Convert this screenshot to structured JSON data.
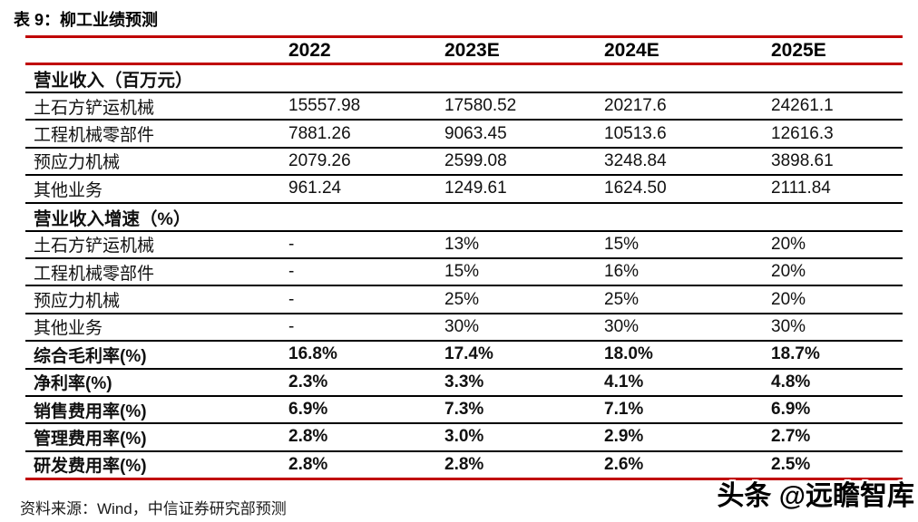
{
  "title": "表 9：柳工业绩预测",
  "source_note": "资料来源：Wind，中信证券研究部预测",
  "watermark": "头条 @远瞻智库",
  "colors": {
    "accent_red": "#C00000",
    "separator_black": "#000000",
    "text": "#111111",
    "background": "#FFFFFF"
  },
  "table": {
    "column_headers": [
      "",
      "2022",
      "2023E",
      "2024E",
      "2025E"
    ],
    "rows": [
      {
        "style": "section",
        "label": "营业收入（百万元）",
        "values": [
          "",
          "",
          "",
          ""
        ]
      },
      {
        "style": "data",
        "label": "土石方铲运机械",
        "values": [
          "15557.98",
          "17580.52",
          "20217.6",
          "24261.1"
        ]
      },
      {
        "style": "data",
        "label": "工程机械零部件",
        "values": [
          "7881.26",
          "9063.45",
          "10513.6",
          "12616.3"
        ]
      },
      {
        "style": "data",
        "label": "预应力机械",
        "values": [
          "2079.26",
          "2599.08",
          "3248.84",
          "3898.61"
        ]
      },
      {
        "style": "data",
        "label": "其他业务",
        "values": [
          "961.24",
          "1249.61",
          "1624.50",
          "2111.84"
        ]
      },
      {
        "style": "section",
        "label": "营业收入增速（%）",
        "values": [
          "",
          "",
          "",
          ""
        ]
      },
      {
        "style": "data",
        "label": "土石方铲运机械",
        "values": [
          "-",
          "13%",
          "15%",
          "20%"
        ]
      },
      {
        "style": "data",
        "label": "工程机械零部件",
        "values": [
          "-",
          "15%",
          "16%",
          "20%"
        ]
      },
      {
        "style": "data",
        "label": "预应力机械",
        "values": [
          "-",
          "25%",
          "25%",
          "20%"
        ]
      },
      {
        "style": "data",
        "label": "其他业务",
        "values": [
          "-",
          "30%",
          "30%",
          "30%"
        ]
      },
      {
        "style": "bold",
        "label": "综合毛利率(%)",
        "values": [
          "16.8%",
          "17.4%",
          "18.0%",
          "18.7%"
        ]
      },
      {
        "style": "bold",
        "label": "净利率(%)",
        "values": [
          "2.3%",
          "3.3%",
          "4.1%",
          "4.8%"
        ]
      },
      {
        "style": "bold",
        "label": "销售费用率(%)",
        "values": [
          "6.9%",
          "7.3%",
          "7.1%",
          "6.9%"
        ]
      },
      {
        "style": "bold",
        "label": "管理费用率(%)",
        "values": [
          "2.8%",
          "3.0%",
          "2.9%",
          "2.7%"
        ]
      },
      {
        "style": "bold",
        "label": "研发费用率(%)",
        "values": [
          "2.8%",
          "2.8%",
          "2.6%",
          "2.5%"
        ]
      }
    ]
  }
}
